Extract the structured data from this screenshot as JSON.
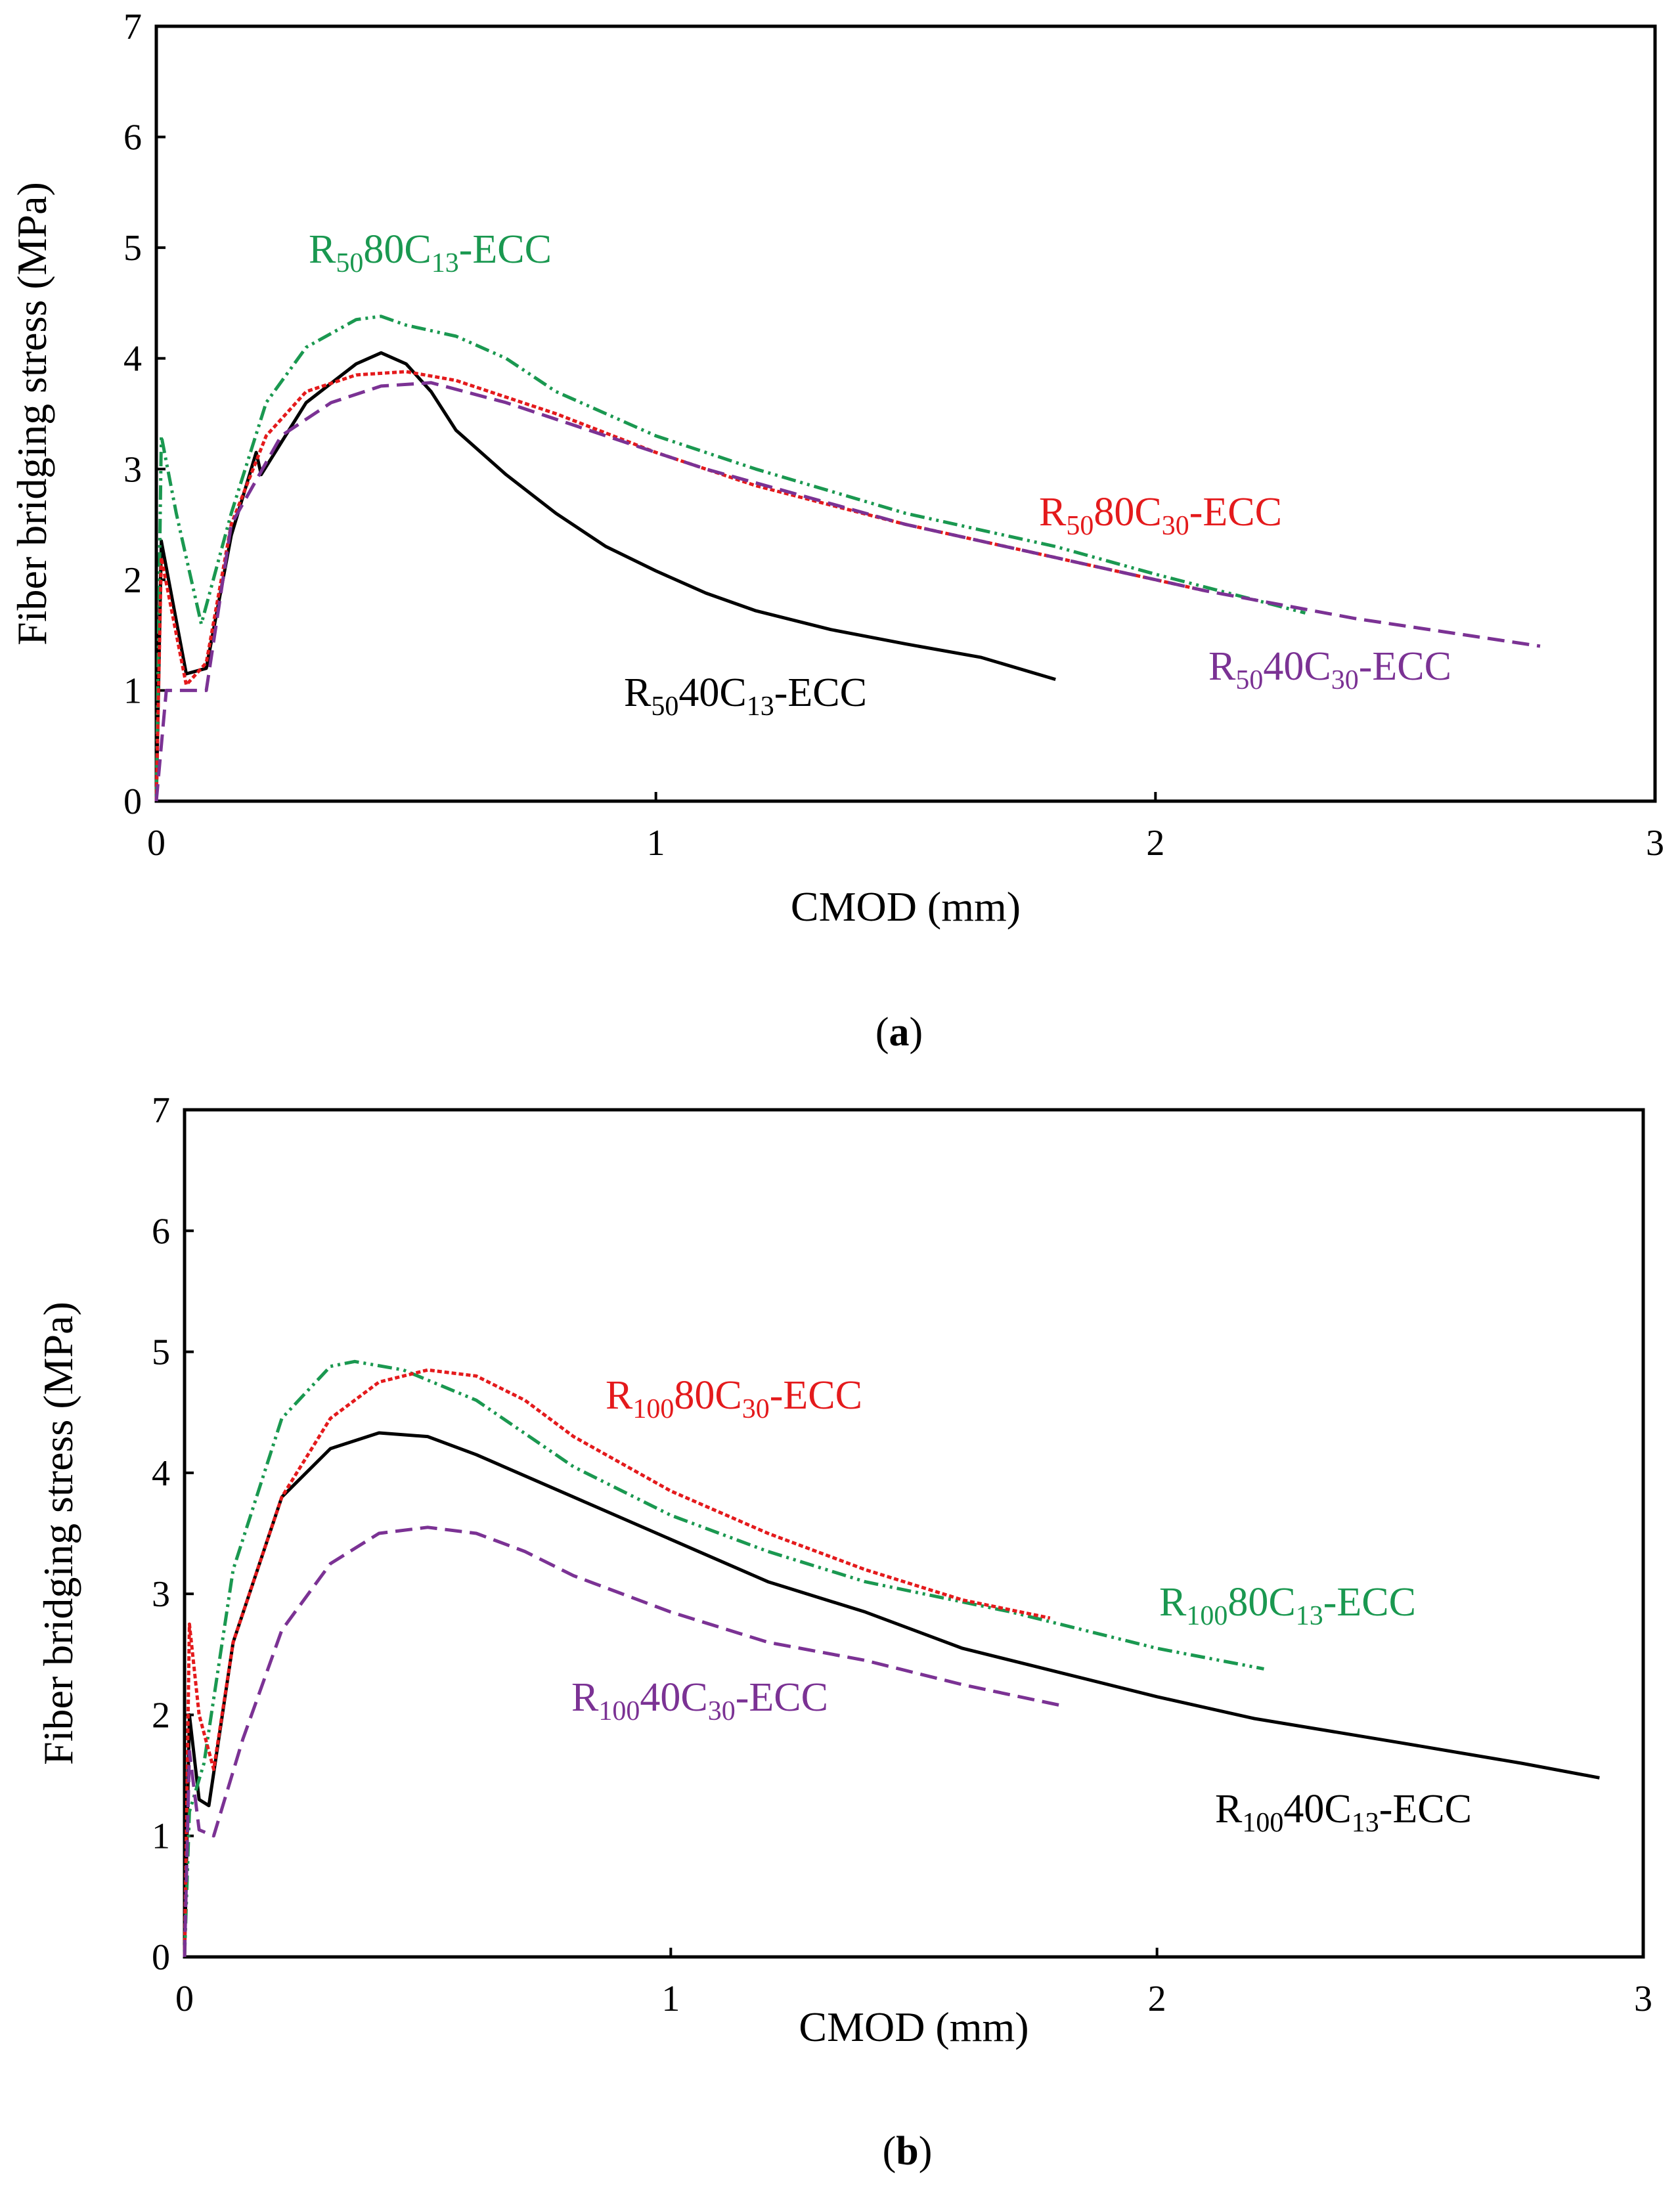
{
  "chart_data": [
    {
      "type": "line",
      "caption": {
        "open": "(",
        "letter": "a",
        "close": ")"
      },
      "xlabel": "CMOD (mm)",
      "ylabel": "Fiber bridging stress (MPa)",
      "xlim": [
        0,
        3
      ],
      "ylim": [
        0,
        7
      ],
      "xticks": [
        "0",
        "1",
        "2",
        "3"
      ],
      "yticks": [
        "0",
        "1",
        "2",
        "3",
        "4",
        "5",
        "6",
        "7"
      ],
      "series": [
        {
          "name": "R50-40C13-ECC",
          "color": "#000000",
          "dash": "none",
          "points": [
            [
              0,
              0
            ],
            [
              0.01,
              2.35
            ],
            [
              0.06,
              1.15
            ],
            [
              0.1,
              1.2
            ],
            [
              0.15,
              2.4
            ],
            [
              0.2,
              3.15
            ],
            [
              0.21,
              2.95
            ],
            [
              0.3,
              3.6
            ],
            [
              0.4,
              3.95
            ],
            [
              0.45,
              4.05
            ],
            [
              0.5,
              3.95
            ],
            [
              0.55,
              3.7
            ],
            [
              0.6,
              3.35
            ],
            [
              0.7,
              2.95
            ],
            [
              0.8,
              2.6
            ],
            [
              0.9,
              2.3
            ],
            [
              1.0,
              2.08
            ],
            [
              1.1,
              1.88
            ],
            [
              1.2,
              1.72
            ],
            [
              1.35,
              1.55
            ],
            [
              1.5,
              1.42
            ],
            [
              1.65,
              1.3
            ],
            [
              1.8,
              1.1
            ]
          ]
        },
        {
          "name": "R50-80C13-ECC",
          "color": "#1a9850",
          "dash": "22 7 4 7 4 7",
          "points": [
            [
              0,
              0
            ],
            [
              0.01,
              3.3
            ],
            [
              0.04,
              2.6
            ],
            [
              0.09,
              1.6
            ],
            [
              0.15,
              2.6
            ],
            [
              0.22,
              3.6
            ],
            [
              0.3,
              4.1
            ],
            [
              0.4,
              4.35
            ],
            [
              0.45,
              4.38
            ],
            [
              0.5,
              4.3
            ],
            [
              0.6,
              4.2
            ],
            [
              0.7,
              4.0
            ],
            [
              0.8,
              3.7
            ],
            [
              1.0,
              3.3
            ],
            [
              1.2,
              3.0
            ],
            [
              1.5,
              2.6
            ],
            [
              1.8,
              2.3
            ],
            [
              2.0,
              2.05
            ],
            [
              2.3,
              1.7
            ]
          ]
        },
        {
          "name": "R50-80C30-ECC",
          "color": "#e41a1c",
          "dash": "7 4",
          "points": [
            [
              0,
              0
            ],
            [
              0.01,
              2.2
            ],
            [
              0.06,
              1.05
            ],
            [
              0.1,
              1.25
            ],
            [
              0.15,
              2.5
            ],
            [
              0.22,
              3.3
            ],
            [
              0.3,
              3.7
            ],
            [
              0.4,
              3.85
            ],
            [
              0.5,
              3.88
            ],
            [
              0.6,
              3.8
            ],
            [
              0.8,
              3.5
            ],
            [
              1.0,
              3.15
            ],
            [
              1.2,
              2.85
            ],
            [
              1.5,
              2.5
            ],
            [
              1.8,
              2.2
            ],
            [
              2.1,
              1.9
            ]
          ]
        },
        {
          "name": "R50-40C30-ECC",
          "color": "#7b3294",
          "dash": "26 12",
          "points": [
            [
              0,
              0
            ],
            [
              0.02,
              1.0
            ],
            [
              0.1,
              1.0
            ],
            [
              0.15,
              2.5
            ],
            [
              0.25,
              3.3
            ],
            [
              0.35,
              3.6
            ],
            [
              0.45,
              3.75
            ],
            [
              0.55,
              3.78
            ],
            [
              0.7,
              3.6
            ],
            [
              0.9,
              3.3
            ],
            [
              1.1,
              3.0
            ],
            [
              1.3,
              2.75
            ],
            [
              1.5,
              2.5
            ],
            [
              1.8,
              2.2
            ],
            [
              2.1,
              1.9
            ],
            [
              2.4,
              1.65
            ],
            [
              2.77,
              1.4
            ]
          ]
        }
      ],
      "annotations": [
        {
          "pre": "R",
          "sub1": "50",
          "mid": "80C",
          "sub2": "13",
          "post": "-ECC",
          "color": "#1a9850"
        },
        {
          "pre": "R",
          "sub1": "50",
          "mid": "80C",
          "sub2": "30",
          "post": "-ECC",
          "color": "#e41a1c"
        },
        {
          "pre": "R",
          "sub1": "50",
          "mid": "40C",
          "sub2": "13",
          "post": "-ECC",
          "color": "#000000"
        },
        {
          "pre": "R",
          "sub1": "50",
          "mid": "40C",
          "sub2": "30",
          "post": "-ECC",
          "color": "#7b3294"
        }
      ]
    },
    {
      "type": "line",
      "caption": {
        "open": "(",
        "letter": "b",
        "close": ")"
      },
      "xlabel": "CMOD (mm)",
      "ylabel": "Fiber bridging stress (MPa)",
      "xlim": [
        0,
        3
      ],
      "ylim": [
        0,
        7
      ],
      "xticks": [
        "0",
        "1",
        "2",
        "3"
      ],
      "yticks": [
        "0",
        "1",
        "2",
        "3",
        "4",
        "5",
        "6",
        "7"
      ],
      "series": [
        {
          "name": "R100-40C13-ECC",
          "color": "#000000",
          "dash": "none",
          "points": [
            [
              0,
              0
            ],
            [
              0.01,
              2.0
            ],
            [
              0.03,
              1.3
            ],
            [
              0.05,
              1.25
            ],
            [
              0.1,
              2.6
            ],
            [
              0.2,
              3.8
            ],
            [
              0.3,
              4.2
            ],
            [
              0.4,
              4.33
            ],
            [
              0.5,
              4.3
            ],
            [
              0.6,
              4.15
            ],
            [
              0.8,
              3.8
            ],
            [
              1.0,
              3.45
            ],
            [
              1.2,
              3.1
            ],
            [
              1.4,
              2.85
            ],
            [
              1.6,
              2.55
            ],
            [
              1.8,
              2.35
            ],
            [
              2.0,
              2.15
            ],
            [
              2.2,
              1.97
            ],
            [
              2.5,
              1.77
            ],
            [
              2.75,
              1.6
            ],
            [
              2.91,
              1.48
            ]
          ]
        },
        {
          "name": "R100-80C13-ECC",
          "color": "#1a9850",
          "dash": "22 7 4 7 4 7",
          "points": [
            [
              0,
              0
            ],
            [
              0.01,
              1.2
            ],
            [
              0.04,
              1.6
            ],
            [
              0.1,
              3.2
            ],
            [
              0.2,
              4.45
            ],
            [
              0.3,
              4.88
            ],
            [
              0.35,
              4.92
            ],
            [
              0.45,
              4.85
            ],
            [
              0.6,
              4.6
            ],
            [
              0.8,
              4.05
            ],
            [
              1.0,
              3.65
            ],
            [
              1.2,
              3.35
            ],
            [
              1.4,
              3.1
            ],
            [
              1.7,
              2.85
            ],
            [
              2.0,
              2.55
            ],
            [
              2.22,
              2.38
            ]
          ]
        },
        {
          "name": "R100-80C30-ECC",
          "color": "#e41a1c",
          "dash": "7 4",
          "points": [
            [
              0,
              0
            ],
            [
              0.01,
              2.75
            ],
            [
              0.03,
              2.0
            ],
            [
              0.06,
              1.55
            ],
            [
              0.1,
              2.6
            ],
            [
              0.2,
              3.8
            ],
            [
              0.3,
              4.45
            ],
            [
              0.4,
              4.75
            ],
            [
              0.5,
              4.85
            ],
            [
              0.6,
              4.8
            ],
            [
              0.7,
              4.6
            ],
            [
              0.8,
              4.3
            ],
            [
              1.0,
              3.85
            ],
            [
              1.2,
              3.5
            ],
            [
              1.4,
              3.2
            ],
            [
              1.6,
              2.95
            ],
            [
              1.78,
              2.8
            ]
          ]
        },
        {
          "name": "R100-40C30-ECC",
          "color": "#7b3294",
          "dash": "26 12",
          "points": [
            [
              0,
              0
            ],
            [
              0.01,
              1.7
            ],
            [
              0.03,
              1.05
            ],
            [
              0.06,
              1.0
            ],
            [
              0.12,
              1.8
            ],
            [
              0.2,
              2.7
            ],
            [
              0.3,
              3.25
            ],
            [
              0.4,
              3.5
            ],
            [
              0.5,
              3.55
            ],
            [
              0.6,
              3.5
            ],
            [
              0.7,
              3.35
            ],
            [
              0.8,
              3.15
            ],
            [
              1.0,
              2.85
            ],
            [
              1.2,
              2.6
            ],
            [
              1.4,
              2.45
            ],
            [
              1.6,
              2.25
            ],
            [
              1.8,
              2.08
            ]
          ]
        }
      ],
      "annotations": [
        {
          "pre": "R",
          "sub1": "100",
          "mid": "80C",
          "sub2": "30",
          "post": "-ECC",
          "color": "#e41a1c"
        },
        {
          "pre": "R",
          "sub1": "100",
          "mid": "80C",
          "sub2": "13",
          "post": "-ECC",
          "color": "#1a9850"
        },
        {
          "pre": "R",
          "sub1": "100",
          "mid": "40C",
          "sub2": "30",
          "post": "-ECC",
          "color": "#7b3294"
        },
        {
          "pre": "R",
          "sub1": "100",
          "mid": "40C",
          "sub2": "13",
          "post": "-ECC",
          "color": "#000000"
        }
      ]
    }
  ]
}
